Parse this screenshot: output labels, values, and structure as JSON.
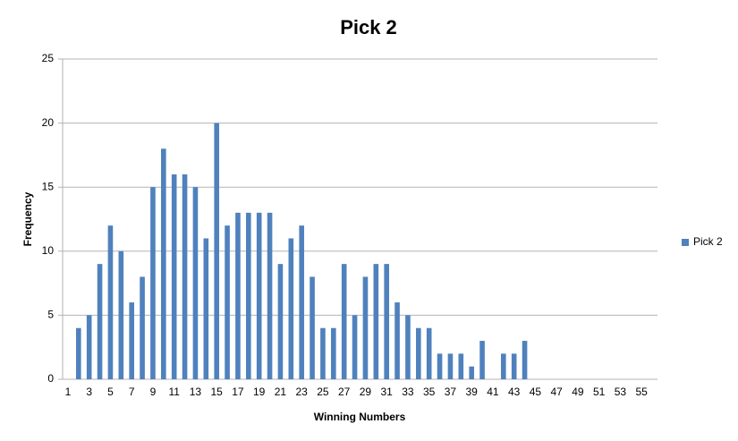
{
  "chart_data": {
    "type": "bar",
    "title": "Pick 2",
    "x_label": "Winning Numbers",
    "y_label": "Frequency",
    "categories": [
      "1",
      null,
      "3",
      null,
      "5",
      null,
      "7",
      null,
      "9",
      null,
      "11",
      null,
      "13",
      null,
      "15",
      null,
      "17",
      null,
      "19",
      null,
      "21",
      null,
      "23",
      null,
      "25",
      null,
      "27",
      null,
      "29",
      null,
      "31",
      null,
      "33",
      null,
      "35",
      null,
      "37",
      null,
      "39",
      null,
      "41",
      null,
      "43",
      null,
      "45",
      null,
      "47",
      null,
      "49",
      null,
      "51",
      null,
      "53",
      null,
      "55",
      null
    ],
    "series": [
      {
        "name": "Pick 2",
        "color": "#4f81bd",
        "values": [
          0,
          4,
          5,
          9,
          12,
          10,
          6,
          8,
          15,
          18,
          16,
          16,
          15,
          11,
          20,
          12,
          13,
          13,
          13,
          13,
          9,
          11,
          12,
          8,
          4,
          4,
          9,
          5,
          8,
          9,
          9,
          6,
          5,
          4,
          4,
          2,
          2,
          2,
          1,
          3,
          0,
          2,
          2,
          3,
          0,
          0,
          0,
          0,
          0,
          0,
          0,
          0,
          0,
          0,
          0,
          0
        ]
      }
    ],
    "ylim": [
      0,
      25
    ],
    "yticks": [
      0,
      5,
      10,
      15,
      20,
      25
    ],
    "grid": true,
    "legend": "right"
  }
}
